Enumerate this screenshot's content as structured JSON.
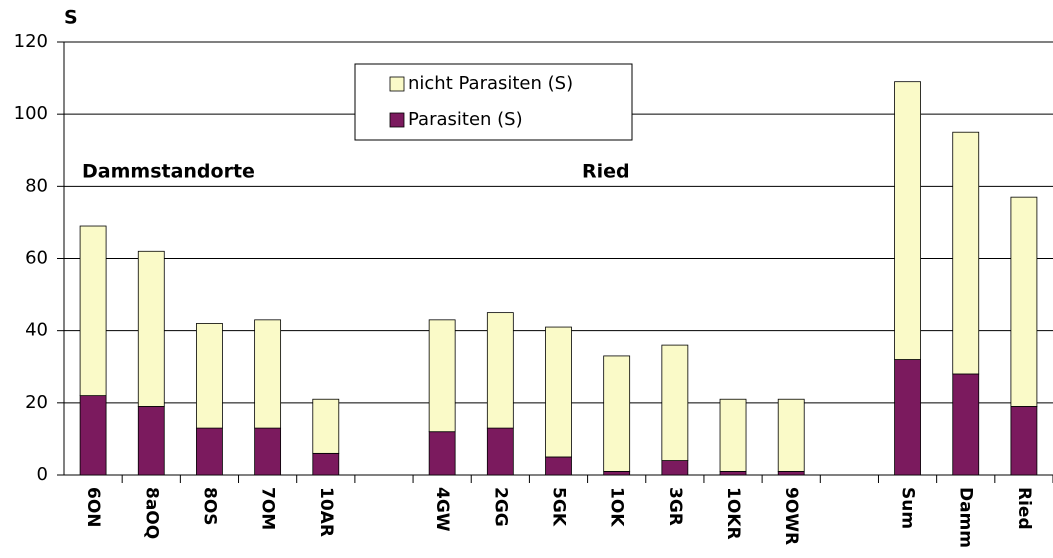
{
  "chart_data": {
    "type": "stacked_bar",
    "y_label": "S",
    "categories": [
      "6ON",
      "8aOQ",
      "8OS",
      "7OM",
      "10AR",
      null,
      "4GW",
      "2GG",
      "5GK",
      "1OK",
      "3GR",
      "1OKR",
      "9OWR",
      null,
      "Sum",
      "Damm",
      "Ried"
    ],
    "series": [
      {
        "name": "Parasiten (S)",
        "color": "#7b1a5e",
        "values": [
          22,
          19,
          13,
          13,
          6,
          null,
          12,
          13,
          5,
          1,
          4,
          1,
          1,
          null,
          32,
          28,
          19
        ]
      },
      {
        "name": "nicht Parasiten (S)",
        "color": "#fafac8",
        "values": [
          47,
          43,
          29,
          30,
          15,
          null,
          31,
          32,
          36,
          32,
          32,
          20,
          20,
          null,
          77,
          67,
          58
        ]
      }
    ],
    "annotations": [
      "Dammstandorte",
      "Ried"
    ],
    "ylim": [
      0,
      120
    ],
    "yticks": [
      0,
      20,
      40,
      60,
      80,
      100,
      120
    ],
    "grid": true
  }
}
